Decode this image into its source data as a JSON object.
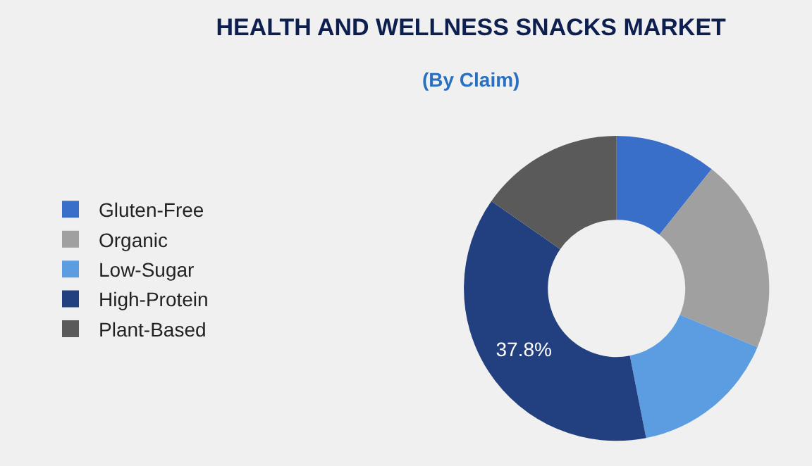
{
  "chart_data": {
    "type": "donut",
    "title": "HEALTH AND WELLNESS SNACKS MARKET",
    "subtitle": "(By Claim)",
    "categories": [
      "Gluten-Free",
      "Organic",
      "Low-Sugar",
      "High-Protein",
      "Plant-Based"
    ],
    "values": [
      10.7,
      20.6,
      15.6,
      37.8,
      15.3
    ],
    "colors": [
      "#3a6fc9",
      "#a0a0a0",
      "#5b9de0",
      "#22407f",
      "#5a5a5a"
    ],
    "value_labels": [
      null,
      null,
      null,
      "37.8%",
      null
    ],
    "legend": "left"
  }
}
